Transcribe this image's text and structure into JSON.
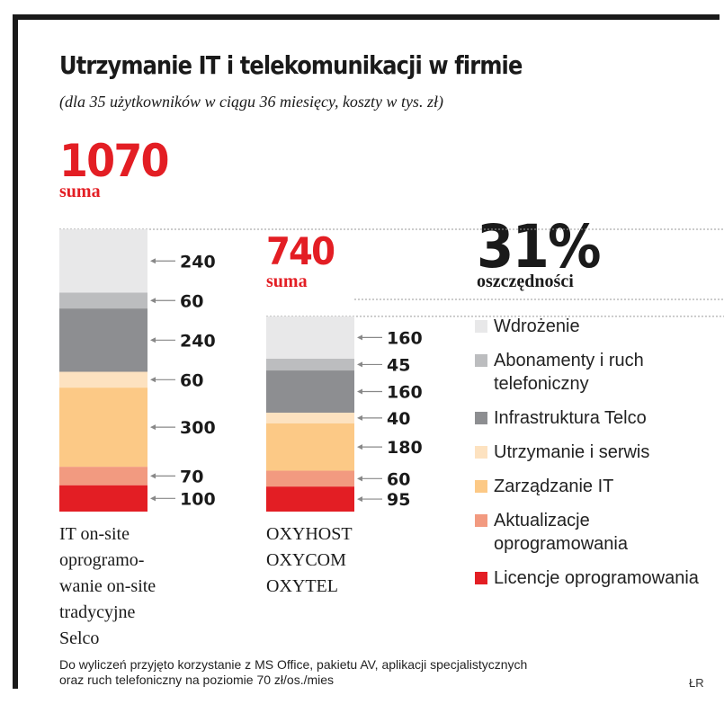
{
  "title": "Utrzymanie IT i telekomunikacji w firmie",
  "subtitle": "(dla 35 użytkowników w ciągu 36 miesięcy, koszty w tys. zł)",
  "savings": {
    "value": "31%",
    "label": "oszczędności"
  },
  "footnote": {
    "line1": "Do wyliczeń przyjęto korzystanie z MS Office, pakietu AV, aplikacji specjalistycznych",
    "line2": "oraz ruch telefoniczny na poziomie 70 zł/os./mies"
  },
  "credit": "ŁR",
  "chart_data": {
    "type": "bar",
    "stacked": true,
    "title": "Utrzymanie IT i telekomunikacji w firmie",
    "unit": "tys. zł",
    "categories": [
      {
        "caption_lines": [
          "IT on-site",
          "oprogramo-",
          "wanie on-site",
          "tradycyjne",
          "Selco"
        ],
        "total": "1070",
        "total_label": "suma"
      },
      {
        "caption_lines": [
          "OXYHOST",
          "OXYCOM",
          "OXYTEL"
        ],
        "total": "740",
        "total_label": "suma"
      }
    ],
    "series": [
      {
        "name": "Wdrożenie",
        "color": "#e8e8e9",
        "values": [
          240,
          160
        ]
      },
      {
        "name": "Abonamenty i ruch telefoniczny",
        "color": "#bcbdbf",
        "values": [
          60,
          45
        ]
      },
      {
        "name": "Infrastruktura Telco",
        "color": "#8d8e91",
        "values": [
          240,
          160
        ]
      },
      {
        "name": "Utrzymanie i serwis",
        "color": "#fde2c0",
        "values": [
          60,
          40
        ]
      },
      {
        "name": "Zarządzanie IT",
        "color": "#fcc986",
        "values": [
          300,
          180
        ]
      },
      {
        "name": "Aktualizacje oprogramowania",
        "color": "#f29a80",
        "values": [
          70,
          60
        ]
      },
      {
        "name": "Licencje oprogramowania",
        "color": "#e31e24",
        "values": [
          100,
          95
        ]
      }
    ]
  }
}
